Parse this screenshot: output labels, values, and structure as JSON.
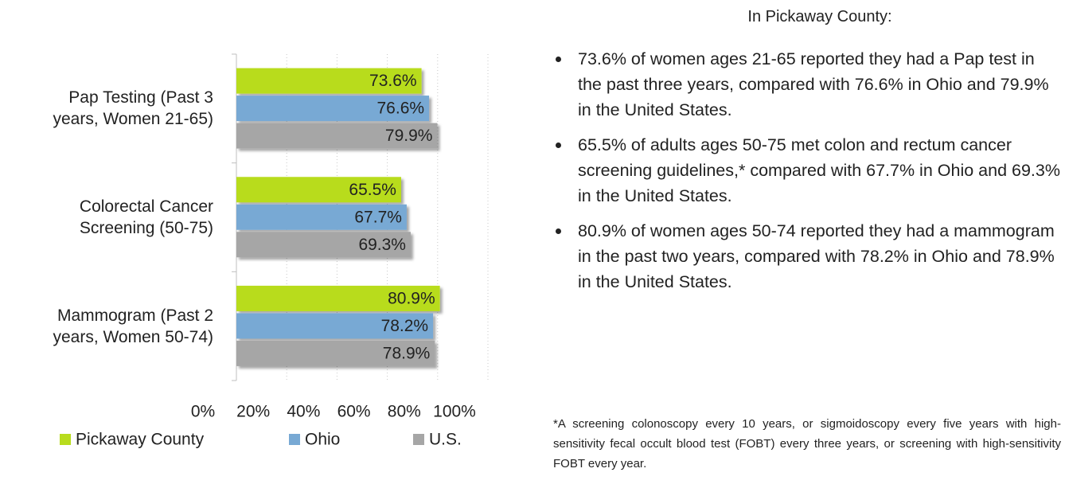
{
  "chart_data": {
    "type": "bar",
    "orientation": "horizontal",
    "categories": [
      "Pap Testing (Past 3 years, Women 21-65)",
      "Colorectal Cancer Screening (50-75)",
      "Mammogram (Past 2 years, Women 50-74)"
    ],
    "series": [
      {
        "name": "Pickaway County",
        "color": "#b8dc1e",
        "values": [
          73.6,
          65.5,
          80.9
        ],
        "value_labels": [
          "73.6%",
          "65.5%",
          "80.9%"
        ]
      },
      {
        "name": "Ohio",
        "color": "#78a9d4",
        "values": [
          76.6,
          67.7,
          78.2
        ],
        "value_labels": [
          "76.6%",
          "67.7%",
          "78.2%"
        ]
      },
      {
        "name": "U.S.",
        "color": "#a6a6a6",
        "values": [
          79.9,
          69.3,
          78.9
        ],
        "value_labels": [
          "79.9%",
          "69.3%",
          "78.9%"
        ]
      }
    ],
    "xlim": [
      0,
      100
    ],
    "xticks": [
      {
        "value": 0,
        "label": "0%"
      },
      {
        "value": 20,
        "label": "20%"
      },
      {
        "value": 40,
        "label": "40%"
      },
      {
        "value": 60,
        "label": "60%"
      },
      {
        "value": 80,
        "label": "80%"
      },
      {
        "value": 100,
        "label": "100%"
      }
    ],
    "grid": true,
    "legend": "bottom"
  },
  "summary": {
    "heading": "In Pickaway County:",
    "bullets": [
      "73.6% of women ages 21-65 reported they had a Pap test in the past three years, compared with 76.6% in Ohio and 79.9% in the United States.",
      "65.5% of adults ages 50-75 met colon and rectum cancer screening guidelines,* compared with 67.7% in Ohio and 69.3% in the United States.",
      "80.9% of women ages 50-74 reported they had a mammogram in the past two years, compared with 78.2% in Ohio and 78.9% in the United States."
    ],
    "footnote": "*A screening colonoscopy every 10 years, or sigmoidoscopy every five years with high-sensitivity fecal occult blood test (FOBT) every three years, or screening with high-sensitivity FOBT every year."
  }
}
